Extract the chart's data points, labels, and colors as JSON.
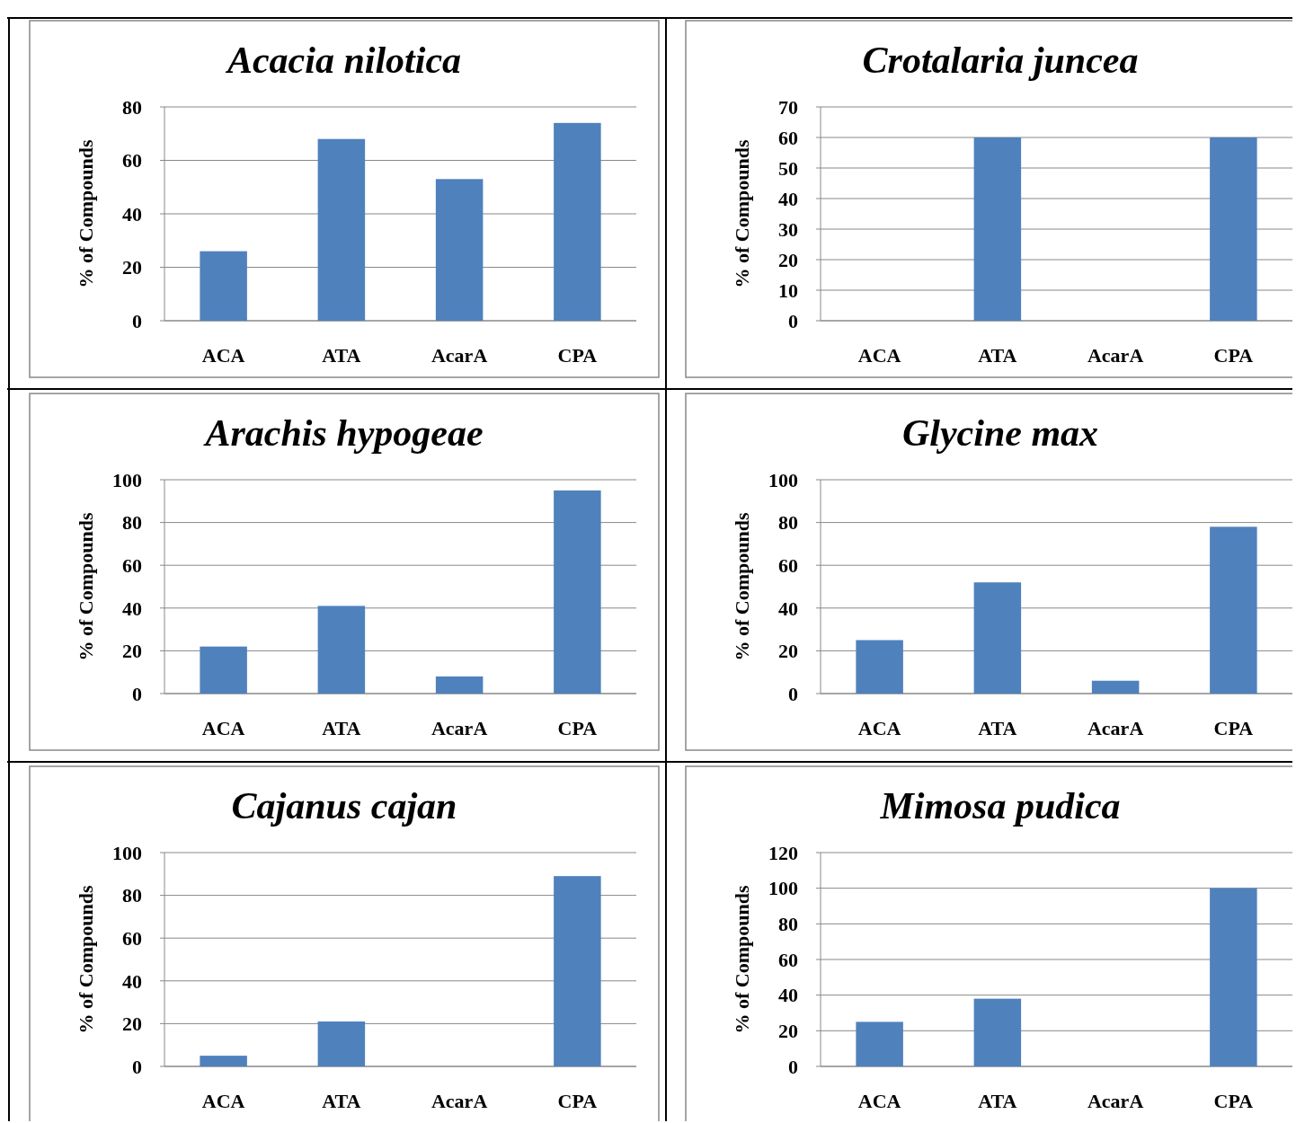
{
  "chart_data": [
    {
      "type": "bar",
      "title": "Acacia nilotica",
      "ylabel": "% of Compounds",
      "categories": [
        "ACA",
        "ATA",
        "AcarA",
        "CPA"
      ],
      "values": [
        26,
        68,
        53,
        74
      ],
      "color": "#4f81bd",
      "ylim": [
        0,
        80
      ],
      "yticks": [
        0,
        20,
        40,
        60,
        80
      ],
      "grid": "y"
    },
    {
      "type": "bar",
      "title": "Crotalaria juncea",
      "ylabel": "% of Compounds",
      "categories": [
        "ACA",
        "ATA",
        "AcarA",
        "CPA"
      ],
      "values": [
        0,
        60,
        0,
        60
      ],
      "color": "#4f81bd",
      "ylim": [
        0,
        70
      ],
      "yticks": [
        0,
        10,
        20,
        30,
        40,
        50,
        60,
        70
      ],
      "grid": "y"
    },
    {
      "type": "bar",
      "title": "Arachis hypogeae",
      "ylabel": "% of Compounds",
      "categories": [
        "ACA",
        "ATA",
        "AcarA",
        "CPA"
      ],
      "values": [
        22,
        41,
        8,
        95
      ],
      "color": "#4f81bd",
      "ylim": [
        0,
        100
      ],
      "yticks": [
        0,
        20,
        40,
        60,
        80,
        100
      ],
      "grid": "y"
    },
    {
      "type": "bar",
      "title": "Glycine max",
      "ylabel": "% of Compounds",
      "categories": [
        "ACA",
        "ATA",
        "AcarA",
        "CPA"
      ],
      "values": [
        25,
        52,
        6,
        78
      ],
      "color": "#4f81bd",
      "ylim": [
        0,
        100
      ],
      "yticks": [
        0,
        20,
        40,
        60,
        80,
        100
      ],
      "grid": "y"
    },
    {
      "type": "bar",
      "title": "Cajanus cajan",
      "ylabel": "% of Compounds",
      "categories": [
        "ACA",
        "ATA",
        "AcarA",
        "CPA"
      ],
      "values": [
        5,
        21,
        0,
        89
      ],
      "color": "#4f81bd",
      "ylim": [
        0,
        100
      ],
      "yticks": [
        0,
        20,
        40,
        60,
        80,
        100
      ],
      "grid": "y"
    },
    {
      "type": "bar",
      "title": "Mimosa pudica",
      "ylabel": "% of Compounds",
      "categories": [
        "ACA",
        "ATA",
        "AcarA",
        "CPA"
      ],
      "values": [
        25,
        38,
        0,
        100
      ],
      "color": "#4f81bd",
      "ylim": [
        0,
        120
      ],
      "yticks": [
        0,
        20,
        40,
        60,
        80,
        100,
        120
      ],
      "grid": "y"
    }
  ]
}
